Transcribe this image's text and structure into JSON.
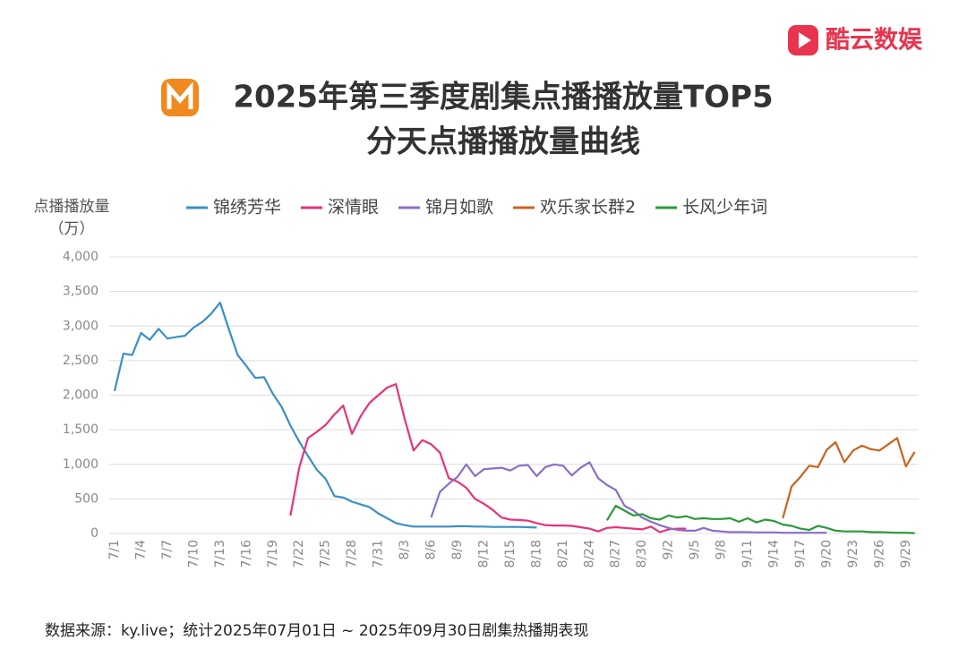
{
  "brand": "酷云数娱",
  "footnote": "数据来源：ky.live；统计2025年07月01日 ~ 2025年09月30日剧集热播期表现",
  "chart_data": {
    "type": "line",
    "title": [
      "2025年第三季度剧集点播播放量TOP5",
      "分天点播播放量曲线"
    ],
    "y_label": [
      "点播播放量",
      "（万）"
    ],
    "categories": [
      "7/1",
      null,
      null,
      "7/4",
      null,
      null,
      "7/7",
      null,
      null,
      "7/10",
      null,
      null,
      "7/13",
      null,
      null,
      "7/16",
      null,
      null,
      "7/19",
      null,
      null,
      "7/22",
      null,
      null,
      "7/25",
      null,
      null,
      "7/28",
      null,
      null,
      "7/31",
      null,
      null,
      "8/3",
      null,
      null,
      "8/6",
      null,
      null,
      "8/9",
      null,
      null,
      "8/12",
      null,
      null,
      "8/15",
      null,
      null,
      "8/18",
      null,
      null,
      "8/21",
      null,
      null,
      "8/24",
      null,
      null,
      "8/27",
      null,
      null,
      "8/30",
      null,
      null,
      "9/2",
      null,
      null,
      "9/5",
      null,
      null,
      "9/8",
      null,
      null,
      "9/11",
      null,
      null,
      "9/14",
      null,
      null,
      "9/17",
      null,
      null,
      "9/20",
      null,
      null,
      "9/23",
      null,
      null,
      "9/26",
      null,
      null,
      "9/29",
      null
    ],
    "ylim": [
      0,
      4000
    ],
    "yticks": [
      0,
      500,
      {
        "value": 1000,
        "label": "1,000"
      },
      {
        "value": 1500,
        "label": "1,500"
      },
      {
        "value": 2000,
        "label": "2,000"
      },
      {
        "value": 2500,
        "label": "2,500"
      },
      {
        "value": 3000,
        "label": "3,000"
      },
      {
        "value": 3500,
        "label": "3,500"
      },
      {
        "value": 4000,
        "label": "4,000"
      }
    ],
    "grid": true,
    "legend": "top",
    "series": [
      {
        "name": "锦绣芳华",
        "color": "#3b8fc4",
        "values": [
          2060,
          2600,
          2580,
          2900,
          2800,
          2960,
          2820,
          2840,
          2860,
          2980,
          3060,
          3180,
          3340,
          2950,
          2580,
          2420,
          2250,
          2260,
          2020,
          1830,
          1560,
          1330,
          1120,
          920,
          790,
          540,
          520,
          460,
          420,
          380,
          290,
          220,
          150,
          120,
          100,
          100,
          100,
          100,
          100,
          105,
          105,
          100,
          100,
          95,
          95,
          95,
          95,
          90,
          85,
          null,
          null,
          null,
          null,
          null,
          null,
          null,
          null,
          null,
          null,
          null,
          null,
          null,
          null,
          null,
          null,
          null,
          null,
          null,
          null,
          null,
          null,
          null,
          null,
          null,
          null,
          null,
          null,
          null,
          null,
          null,
          null,
          null,
          null,
          null,
          null,
          null,
          null,
          null,
          null,
          null,
          null,
          null
        ]
      },
      {
        "name": "深情眼",
        "color": "#e6337a",
        "values": [
          null,
          null,
          null,
          null,
          null,
          null,
          null,
          null,
          null,
          null,
          null,
          null,
          null,
          null,
          null,
          null,
          null,
          null,
          null,
          null,
          260,
          950,
          1380,
          1470,
          1570,
          1720,
          1850,
          1440,
          1700,
          1890,
          2000,
          2110,
          2160,
          1650,
          1200,
          1350,
          1290,
          1170,
          800,
          750,
          660,
          500,
          430,
          340,
          230,
          200,
          195,
          185,
          150,
          120,
          115,
          115,
          110,
          90,
          70,
          30,
          80,
          90,
          80,
          70,
          60,
          100,
          20,
          60,
          70,
          70,
          null,
          null,
          null,
          null,
          null,
          null,
          null,
          null,
          null,
          null,
          null,
          null,
          null,
          null,
          null,
          null,
          null,
          null,
          null,
          null,
          null,
          null,
          null,
          null,
          null,
          null
        ]
      },
      {
        "name": "锦月如歌",
        "color": "#8a6fc8",
        "values": [
          null,
          null,
          null,
          null,
          null,
          null,
          null,
          null,
          null,
          null,
          null,
          null,
          null,
          null,
          null,
          null,
          null,
          null,
          null,
          null,
          null,
          null,
          null,
          null,
          null,
          null,
          null,
          null,
          null,
          null,
          null,
          null,
          null,
          null,
          null,
          null,
          230,
          600,
          720,
          820,
          1000,
          830,
          930,
          940,
          950,
          910,
          980,
          990,
          830,
          960,
          1000,
          980,
          840,
          950,
          1030,
          800,
          700,
          630,
          400,
          330,
          230,
          170,
          120,
          80,
          50,
          40,
          40,
          80,
          40,
          30,
          20,
          20,
          20,
          15,
          15,
          15,
          10,
          10,
          10,
          10,
          10,
          10,
          null,
          null,
          null,
          null,
          null,
          null,
          null,
          null,
          null,
          null
        ]
      },
      {
        "name": "欢乐家长群2",
        "color": "#c8641e",
        "values": [
          null,
          null,
          null,
          null,
          null,
          null,
          null,
          null,
          null,
          null,
          null,
          null,
          null,
          null,
          null,
          null,
          null,
          null,
          null,
          null,
          null,
          null,
          null,
          null,
          null,
          null,
          null,
          null,
          null,
          null,
          null,
          null,
          null,
          null,
          null,
          null,
          null,
          null,
          null,
          null,
          null,
          null,
          null,
          null,
          null,
          null,
          null,
          null,
          null,
          null,
          null,
          null,
          null,
          null,
          null,
          null,
          null,
          null,
          null,
          null,
          null,
          null,
          null,
          null,
          null,
          null,
          null,
          null,
          null,
          null,
          null,
          null,
          null,
          null,
          null,
          null,
          220,
          680,
          820,
          980,
          960,
          1210,
          1320,
          1030,
          1200,
          1270,
          1220,
          1200,
          1290,
          1380,
          970,
          1180
        ]
      },
      {
        "name": "长风少年词",
        "color": "#2a9a3a",
        "values": [
          null,
          null,
          null,
          null,
          null,
          null,
          null,
          null,
          null,
          null,
          null,
          null,
          null,
          null,
          null,
          null,
          null,
          null,
          null,
          null,
          null,
          null,
          null,
          null,
          null,
          null,
          null,
          null,
          null,
          null,
          null,
          null,
          null,
          null,
          null,
          null,
          null,
          null,
          null,
          null,
          null,
          null,
          null,
          null,
          null,
          null,
          null,
          null,
          null,
          null,
          null,
          null,
          null,
          null,
          null,
          null,
          190,
          400,
          330,
          260,
          280,
          220,
          200,
          260,
          230,
          250,
          210,
          220,
          210,
          210,
          220,
          170,
          220,
          160,
          200,
          180,
          130,
          110,
          70,
          50,
          110,
          80,
          40,
          30,
          30,
          30,
          20,
          20,
          15,
          10,
          10,
          5
        ]
      }
    ]
  }
}
